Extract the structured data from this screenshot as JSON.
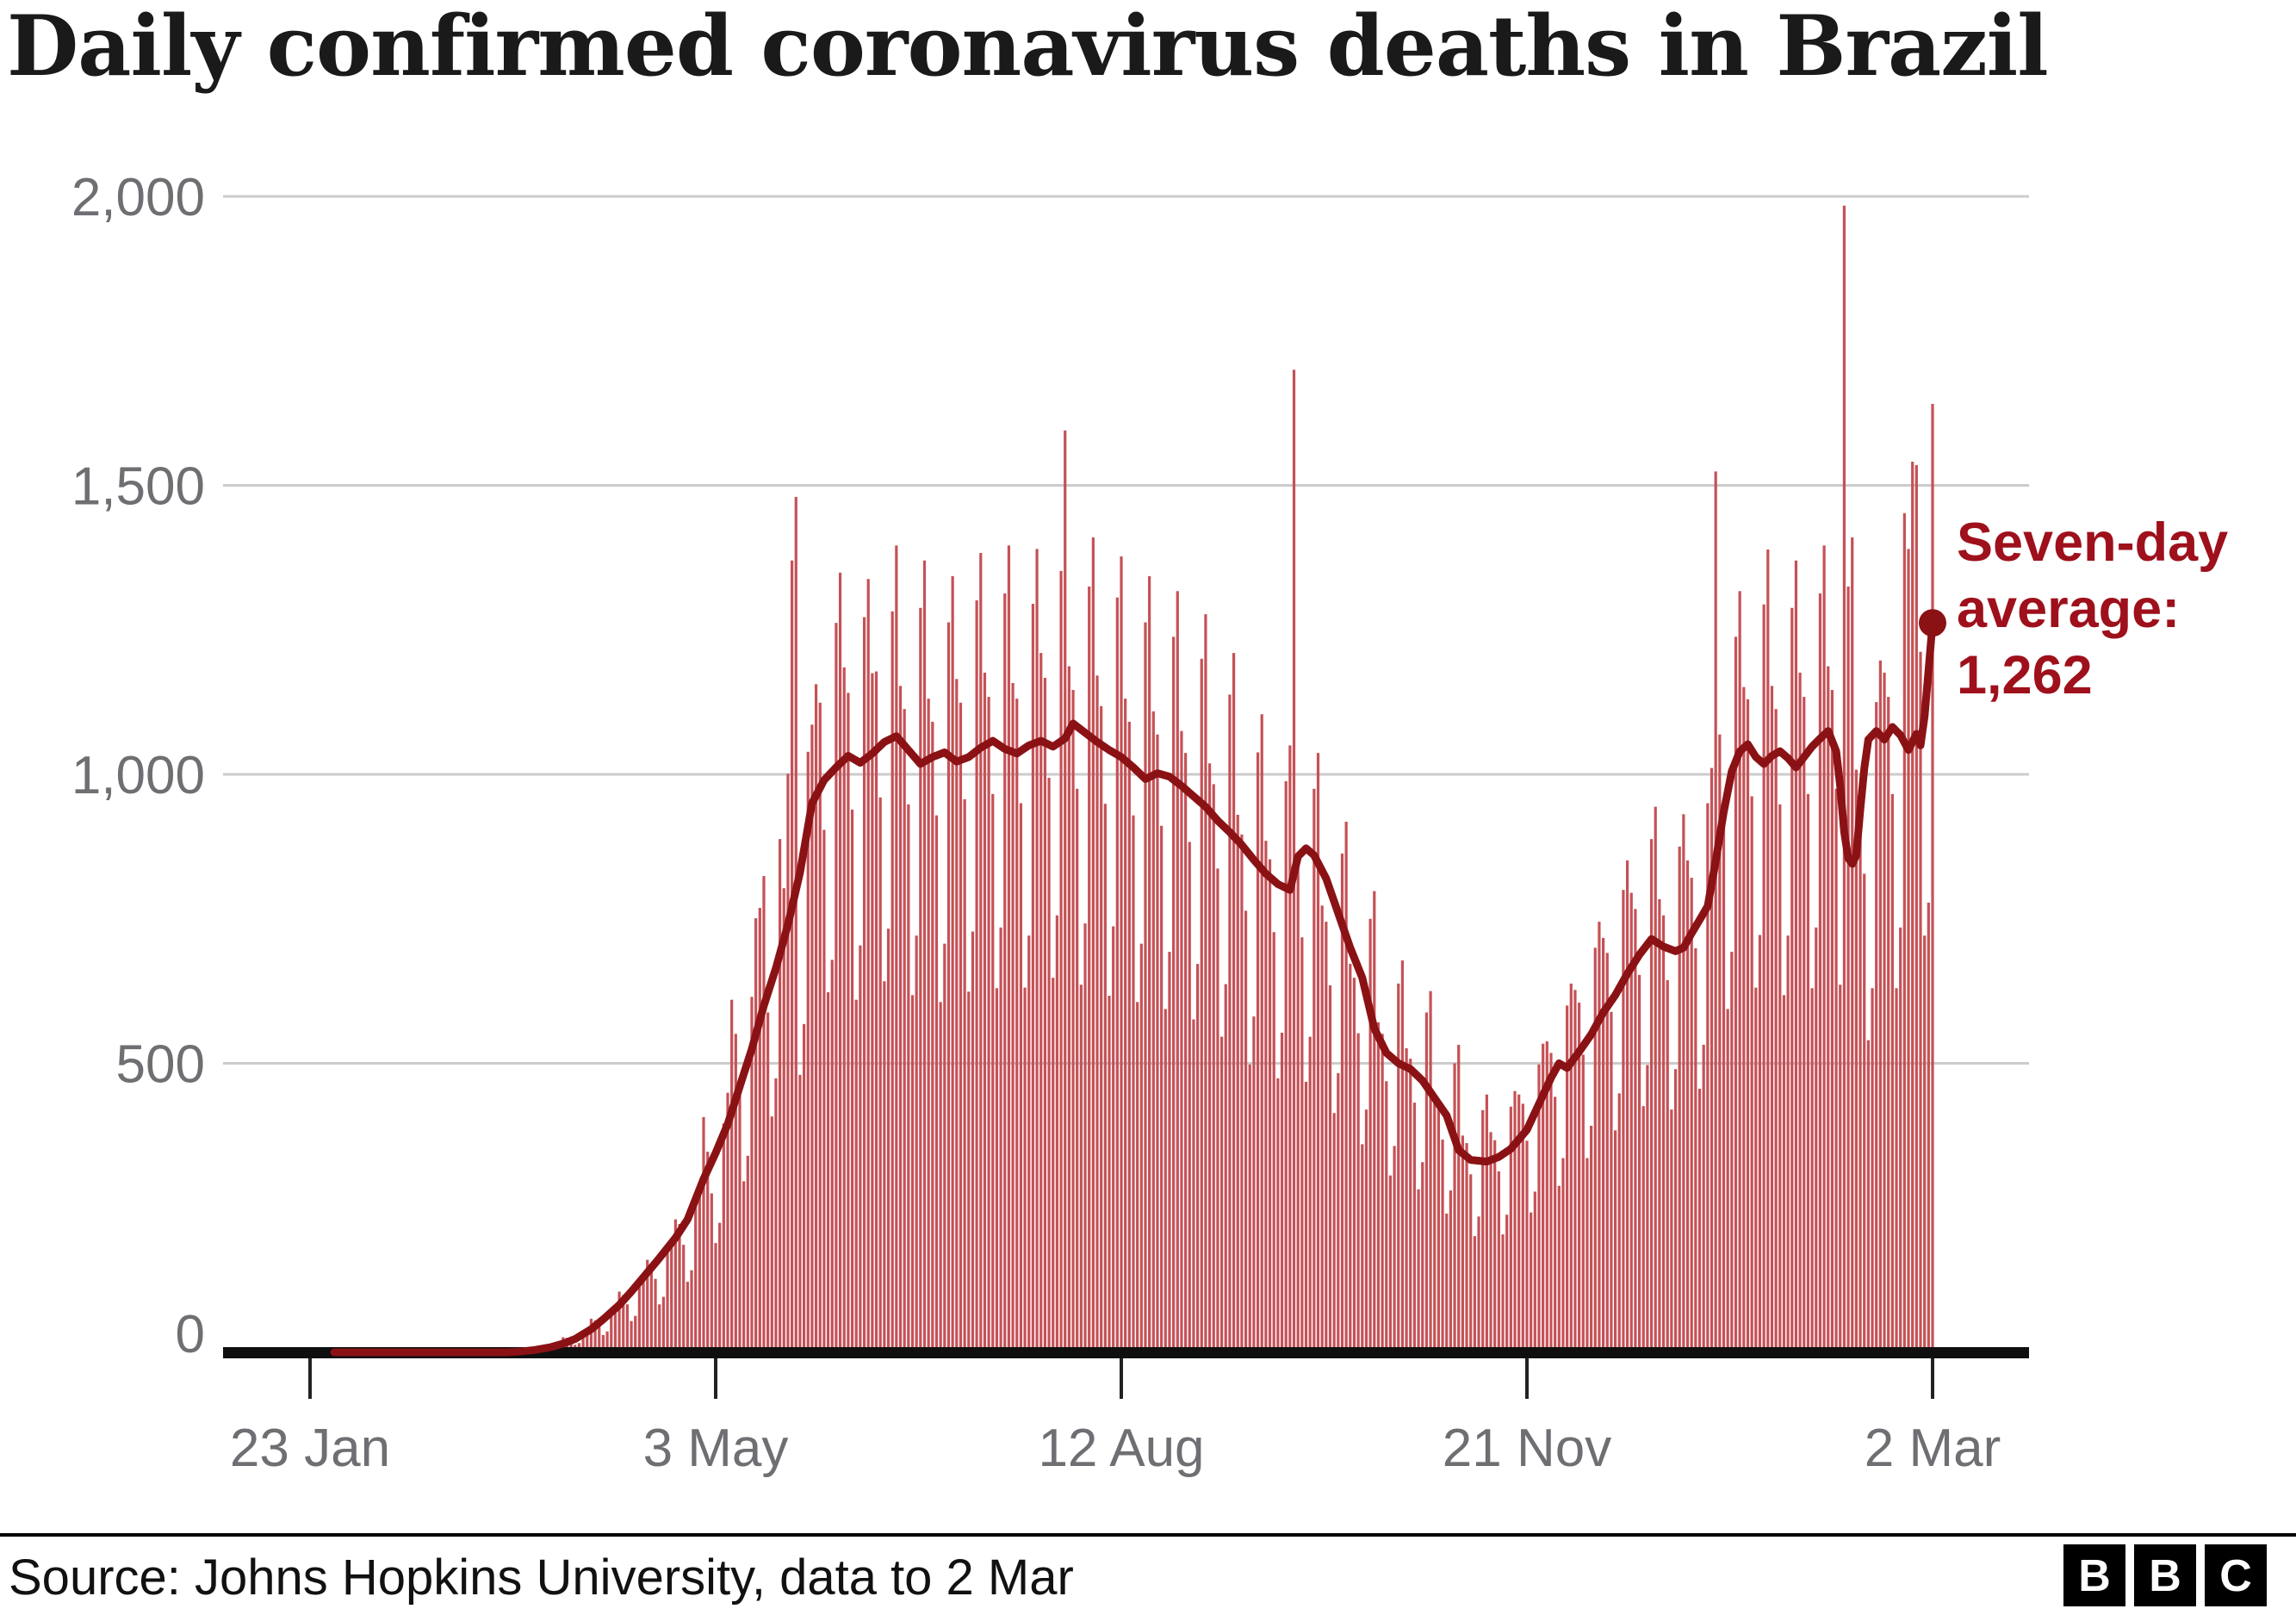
{
  "title": "Daily confirmed coronavirus deaths in Brazil",
  "annotation": {
    "line1": "Seven-day",
    "line2": "average:",
    "line3": "1,262",
    "color": "#9e101b"
  },
  "source": {
    "label": "Source: Johns Hopkins University, data to 2 Mar"
  },
  "logo": {
    "letters": [
      "B",
      "B",
      "C"
    ]
  },
  "chart_data": {
    "type": "bar",
    "title": "Daily confirmed coronavirus deaths in Brazil",
    "grid": "horizontal",
    "legend_position": "annotation-right",
    "colors": {
      "bar": "#c55156",
      "line": "#8a1215",
      "grid": "#cccccc",
      "axis": "#0f0f0f",
      "tick": "#222222",
      "labels": "#6e6e73"
    },
    "x_axis": {
      "start_date": "23 Jan 2020",
      "end_date": "2 Mar 2021",
      "total_days": 405,
      "ticks": [
        {
          "day": 0,
          "label": "23 Jan"
        },
        {
          "day": 101,
          "label": "3 May"
        },
        {
          "day": 202,
          "label": "12 Aug"
        },
        {
          "day": 303,
          "label": "21 Nov"
        },
        {
          "day": 404,
          "label": "2 Mar"
        }
      ]
    },
    "y_axis": {
      "ticks": [
        0,
        500,
        1000,
        1500,
        2000
      ],
      "labels": [
        "0",
        "500",
        "1,000",
        "1,500",
        "2,000"
      ],
      "max": 2000
    },
    "series": [
      {
        "name": "Daily deaths",
        "type": "bar",
        "color": "#c55156",
        "values": [
          0,
          0,
          0,
          0,
          0,
          0,
          0,
          0,
          0,
          0,
          0,
          0,
          0,
          0,
          0,
          0,
          0,
          0,
          0,
          0,
          0,
          0,
          0,
          0,
          0,
          0,
          0,
          0,
          0,
          0,
          0,
          0,
          0,
          0,
          0,
          0,
          0,
          0,
          0,
          0,
          0,
          0,
          0,
          0,
          0,
          0,
          0,
          0,
          0,
          0,
          0,
          0,
          0,
          1,
          2,
          3,
          7,
          6,
          5,
          3,
          4,
          12,
          16,
          26,
          25,
          20,
          13,
          16,
          34,
          39,
          58,
          55,
          46,
          30,
          36,
          66,
          73,
          105,
          99,
          83,
          54,
          63,
          114,
          125,
          160,
          152,
          127,
          83,
          96,
          176,
          188,
          230,
          222,
          186,
          122,
          142,
          258,
          272,
          407,
          347,
          275,
          189,
          224,
          396,
          449,
          610,
          551,
          455,
          296,
          340,
          615,
          751,
          769,
          824,
          588,
          408,
          474,
          888,
          803,
          1001,
          1370,
          1480,
          480,
          568,
          1039,
          1086,
          1156,
          1124,
          904,
          623,
          679,
          1262,
          1349,
          1185,
          1141,
          939,
          610,
          704,
          1272,
          1338,
          1175,
          1178,
          960,
          642,
          733,
          1282,
          1396,
          1153,
          1113,
          948,
          618,
          721,
          1288,
          1370,
          1131,
          1091,
          929,
          606,
          707,
          1263,
          1343,
          1165,
          1124,
          957,
          624,
          728,
          1301,
          1383,
          1176,
          1134,
          966,
          630,
          735,
          1313,
          1396,
          1158,
          1131,
          950,
          631,
          721,
          1295,
          1390,
          1210,
          1167,
          994,
          648,
          756,
          1352,
          1595,
          1187,
          1146,
          975,
          636,
          742,
          1325,
          1410,
          1171,
          1118,
          949,
          617,
          737,
          1306,
          1377,
          1131,
          1091,
          929,
          606,
          707,
          1263,
          1343,
          1109,
          1069,
          911,
          594,
          693,
          1238,
          1317,
          1075,
          1037,
          883,
          576,
          672,
          1200,
          1277,
          1019,
          983,
          837,
          546,
          637,
          1138,
          1210,
          930,
          896,
          764,
          498,
          581,
          1038,
          1104,
          885,
          853,
          727,
          474,
          553,
          988,
          1050,
          1700,
          842,
          718,
          468,
          546,
          975,
          1037,
          773,
          745,
          635,
          414,
          483,
          863,
          918,
          672,
          648,
          552,
          360,
          420,
          750,
          798,
          571,
          551,
          469,
          306,
          357,
          638,
          678,
          526,
          508,
          432,
          282,
          329,
          588,
          625,
          448,
          432,
          368,
          240,
          280,
          500,
          532,
          375,
          362,
          308,
          201,
          235,
          419,
          446,
          381,
          367,
          313,
          204,
          238,
          425,
          452,
          446,
          430,
          366,
          242,
          278,
          498,
          534,
          538,
          518,
          442,
          288,
          336,
          600,
          638,
          627,
          605,
          515,
          336,
          392,
          700,
          745,
          717,
          691,
          589,
          384,
          448,
          800,
          851,
          795,
          767,
          653,
          426,
          497,
          888,
          944,
          784,
          756,
          644,
          420,
          490,
          875,
          931,
          851,
          821,
          699,
          456,
          532,
          950,
          1011,
          1524,
          1069,
          911,
          594,
          693,
          1238,
          1317,
          1151,
          1130,
          962,
          631,
          722,
          1294,
          1389,
          1153,
          1113,
          948,
          618,
          721,
          1288,
          1370,
          1176,
          1134,
          966,
          630,
          735,
          1313,
          1396,
          1187,
          1146,
          975,
          636,
          1984,
          1325,
          1410,
          1008,
          972,
          828,
          540,
          630,
          1125,
          1197,
          1176,
          1134,
          966,
          630,
          735,
          1452,
          1390,
          1541,
          1535,
          1212,
          721,
          778,
          1641
        ]
      },
      {
        "name": "Seven-day average",
        "type": "line",
        "color": "#8a1215",
        "last_value": 1262,
        "keypoints": [
          [
            6,
            0
          ],
          [
            49,
            0
          ],
          [
            52,
            1
          ],
          [
            56,
            4
          ],
          [
            60,
            9
          ],
          [
            63,
            15
          ],
          [
            66,
            23
          ],
          [
            70,
            40
          ],
          [
            73,
            57
          ],
          [
            77,
            82
          ],
          [
            80,
            105
          ],
          [
            84,
            138
          ],
          [
            87,
            163
          ],
          [
            91,
            198
          ],
          [
            94,
            230
          ],
          [
            98,
            300
          ],
          [
            101,
            345
          ],
          [
            104,
            395
          ],
          [
            107,
            460
          ],
          [
            110,
            525
          ],
          [
            113,
            600
          ],
          [
            116,
            665
          ],
          [
            119,
            740
          ],
          [
            122,
            830
          ],
          [
            125,
            950
          ],
          [
            128,
            990
          ],
          [
            131,
            1012
          ],
          [
            134,
            1032
          ],
          [
            137,
            1020
          ],
          [
            140,
            1036
          ],
          [
            143,
            1056
          ],
          [
            146,
            1066
          ],
          [
            149,
            1042
          ],
          [
            152,
            1018
          ],
          [
            155,
            1030
          ],
          [
            158,
            1038
          ],
          [
            161,
            1022
          ],
          [
            164,
            1030
          ],
          [
            167,
            1046
          ],
          [
            170,
            1058
          ],
          [
            173,
            1044
          ],
          [
            176,
            1036
          ],
          [
            179,
            1050
          ],
          [
            182,
            1058
          ],
          [
            185,
            1048
          ],
          [
            188,
            1062
          ],
          [
            190,
            1088
          ],
          [
            193,
            1072
          ],
          [
            196,
            1056
          ],
          [
            199,
            1042
          ],
          [
            202,
            1030
          ],
          [
            205,
            1012
          ],
          [
            208,
            992
          ],
          [
            211,
            1002
          ],
          [
            214,
            996
          ],
          [
            217,
            980
          ],
          [
            220,
            962
          ],
          [
            223,
            944
          ],
          [
            226,
            920
          ],
          [
            229,
            900
          ],
          [
            232,
            878
          ],
          [
            235,
            852
          ],
          [
            238,
            828
          ],
          [
            241,
            810
          ],
          [
            244,
            800
          ],
          [
            246,
            858
          ],
          [
            248,
            872
          ],
          [
            250,
            860
          ],
          [
            253,
            820
          ],
          [
            256,
            760
          ],
          [
            259,
            700
          ],
          [
            262,
            648
          ],
          [
            265,
            560
          ],
          [
            268,
            518
          ],
          [
            271,
            500
          ],
          [
            274,
            490
          ],
          [
            277,
            470
          ],
          [
            280,
            440
          ],
          [
            283,
            410
          ],
          [
            286,
            350
          ],
          [
            289,
            333
          ],
          [
            293,
            330
          ],
          [
            296,
            338
          ],
          [
            299,
            352
          ],
          [
            303,
            385
          ],
          [
            306,
            430
          ],
          [
            309,
            475
          ],
          [
            311,
            500
          ],
          [
            313,
            492
          ],
          [
            316,
            520
          ],
          [
            319,
            550
          ],
          [
            322,
            588
          ],
          [
            325,
            618
          ],
          [
            328,
            655
          ],
          [
            331,
            688
          ],
          [
            334,
            715
          ],
          [
            337,
            702
          ],
          [
            340,
            694
          ],
          [
            342,
            700
          ],
          [
            344,
            725
          ],
          [
            346,
            748
          ],
          [
            348,
            772
          ],
          [
            350,
            850
          ],
          [
            352,
            935
          ],
          [
            354,
            1005
          ],
          [
            356,
            1040
          ],
          [
            358,
            1052
          ],
          [
            360,
            1030
          ],
          [
            362,
            1018
          ],
          [
            364,
            1032
          ],
          [
            366,
            1040
          ],
          [
            368,
            1028
          ],
          [
            370,
            1012
          ],
          [
            372,
            1030
          ],
          [
            374,
            1048
          ],
          [
            376,
            1062
          ],
          [
            378,
            1075
          ],
          [
            380,
            1040
          ],
          [
            381,
            980
          ],
          [
            382,
            900
          ],
          [
            383,
            855
          ],
          [
            384,
            845
          ],
          [
            385,
            860
          ],
          [
            386,
            940
          ],
          [
            387,
            1010
          ],
          [
            388,
            1060
          ],
          [
            390,
            1075
          ],
          [
            392,
            1060
          ],
          [
            394,
            1082
          ],
          [
            396,
            1068
          ],
          [
            398,
            1042
          ],
          [
            400,
            1070
          ],
          [
            401,
            1050
          ],
          [
            402,
            1100
          ],
          [
            403,
            1180
          ],
          [
            404,
            1262
          ]
        ]
      }
    ]
  }
}
